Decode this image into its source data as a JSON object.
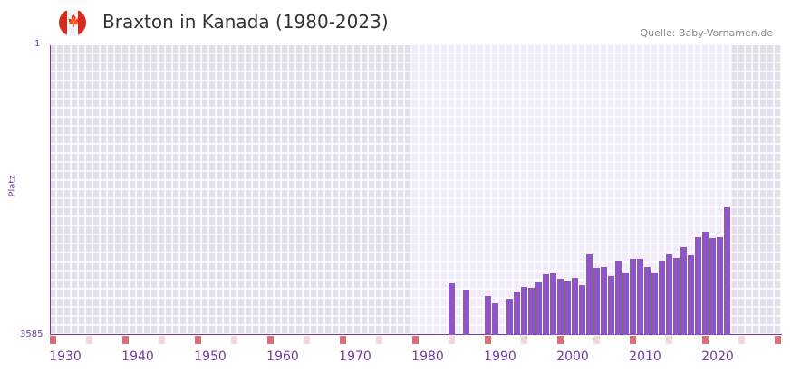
{
  "header": {
    "title": "Braxton in Kanada (1980-2023)",
    "source": "Quelle: Baby-Vornamen.de",
    "flag_icon": "canada-flag-icon"
  },
  "chart_data": {
    "type": "bar",
    "title": "Braxton in Kanada (1980-2023)",
    "ylabel": "Platz",
    "xlabel": "",
    "y_axis_inverted": true,
    "ylim": [
      1,
      3585
    ],
    "y_tick_labels": [
      "1",
      "3585"
    ],
    "xlim": [
      1928,
      2029
    ],
    "x_tick_labels": [
      "1930",
      "1940",
      "1950",
      "1960",
      "1970",
      "1980",
      "1990",
      "2000",
      "2010",
      "2020"
    ],
    "x": [
      1983,
      1985,
      1988,
      1989,
      1991,
      1992,
      1993,
      1994,
      1995,
      1996,
      1997,
      1998,
      1999,
      2000,
      2001,
      2002,
      2003,
      2004,
      2005,
      2006,
      2007,
      2008,
      2009,
      2010,
      2011,
      2012,
      2013,
      2014,
      2015,
      2016,
      2017,
      2018,
      2019,
      2020,
      2021
    ],
    "values": [
      2947,
      3025,
      3103,
      3193,
      3137,
      3047,
      2991,
      3003,
      2935,
      2835,
      2823,
      2891,
      2913,
      2879,
      2969,
      2588,
      2756,
      2745,
      2857,
      2667,
      2812,
      2644,
      2644,
      2745,
      2812,
      2667,
      2588,
      2633,
      2499,
      2599,
      2375,
      2308,
      2387,
      2375,
      2006
    ],
    "colors": {
      "bar": "#8e55c8",
      "axis": "#6a3da0",
      "marker_red": "#e06c75",
      "marker_pink": "#f3d5e0"
    }
  }
}
